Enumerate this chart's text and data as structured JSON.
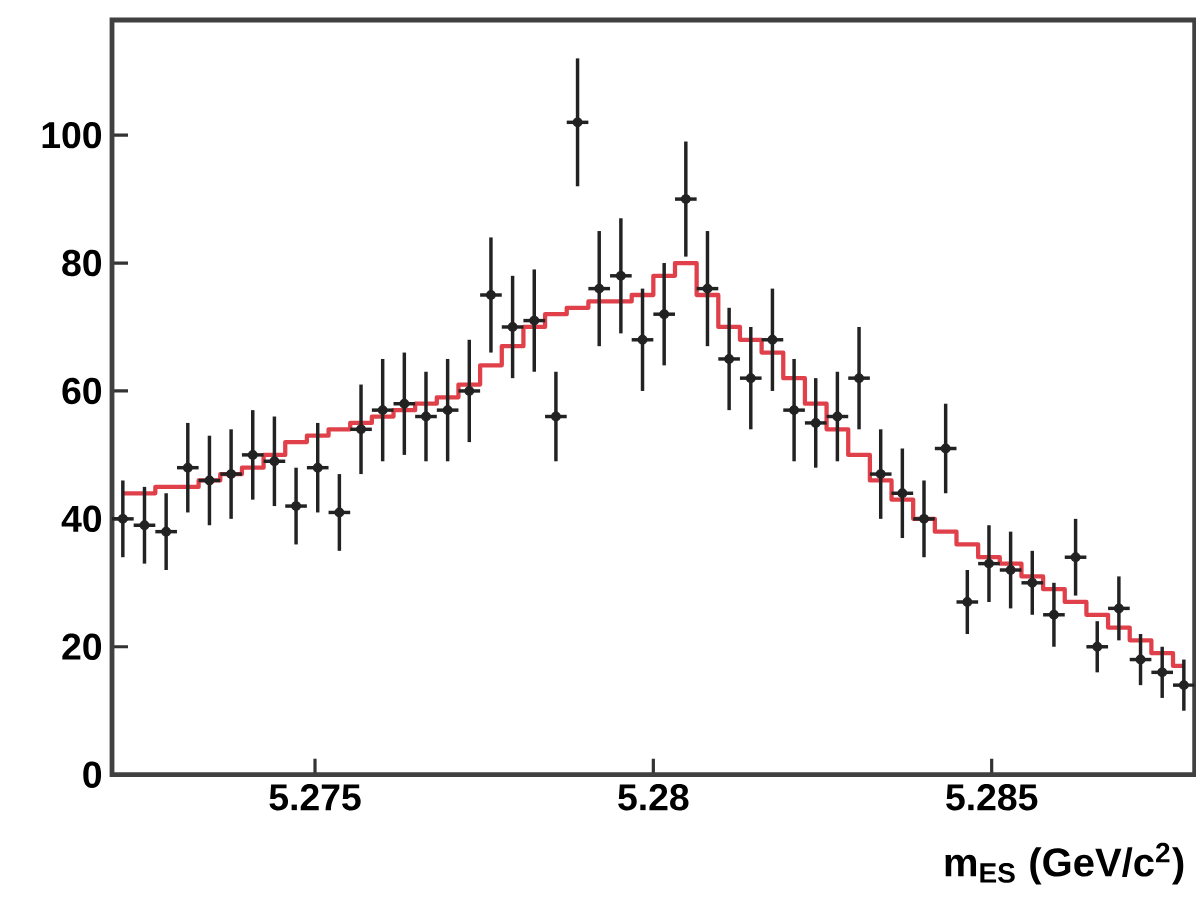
{
  "chart_data": {
    "type": "scatter",
    "xlabel": "m$_{ES}$ (GeV/c$^{2}$)",
    "x": [
      5.27216,
      5.27248,
      5.2728,
      5.27312,
      5.27344,
      5.27376,
      5.27408,
      5.2744,
      5.27472,
      5.27504,
      5.27536,
      5.27568,
      5.276,
      5.27632,
      5.27664,
      5.27696,
      5.27728,
      5.2776,
      5.27792,
      5.27824,
      5.27856,
      5.27888,
      5.2792,
      5.27952,
      5.27984,
      5.28016,
      5.28048,
      5.2808,
      5.28112,
      5.28144,
      5.28176,
      5.28208,
      5.2824,
      5.28272,
      5.28304,
      5.28336,
      5.28368,
      5.284,
      5.28432,
      5.28464,
      5.28496,
      5.28528,
      5.2856,
      5.28592,
      5.28624,
      5.28656,
      5.28688,
      5.2872,
      5.28752,
      5.28784
    ],
    "series": [
      {
        "color": "#222222",
        "marker": "circle",
        "values": [
          40,
          39,
          38,
          48,
          46,
          47,
          50,
          49,
          42,
          48,
          41,
          54,
          57,
          58,
          56,
          57,
          60,
          75,
          70,
          71,
          56,
          102,
          76,
          78,
          68,
          72,
          90,
          76,
          65,
          62,
          68,
          57,
          55,
          56,
          62,
          47,
          44,
          40,
          51,
          27,
          33,
          32,
          30,
          25,
          34,
          20,
          26,
          18,
          16,
          14
        ],
        "errors": [
          6,
          6,
          6,
          7,
          7,
          7,
          7,
          7,
          6,
          7,
          6,
          7,
          8,
          8,
          7,
          8,
          8,
          9,
          8,
          8,
          7,
          10,
          9,
          9,
          8,
          8,
          9,
          9,
          8,
          8,
          8,
          8,
          7,
          7,
          8,
          7,
          7,
          6,
          7,
          5,
          6,
          6,
          5,
          5,
          6,
          4,
          5,
          4,
          4,
          4
        ],
        "xerrors": [
          0.00016,
          0.00016,
          0.00016,
          0.00016,
          0.00016,
          0.00016,
          0.00016,
          0.00016,
          0.00016,
          0.00016,
          0.00016,
          0.00016,
          0.00016,
          0.00016,
          0.00016,
          0.00016,
          0.00016,
          0.00016,
          0.00016,
          0.00016,
          0.00016,
          0.00016,
          0.00016,
          0.00016,
          0.00016,
          0.00016,
          0.00016,
          0.00016,
          0.00016,
          0.00016,
          0.00016,
          0.00016,
          0.00016,
          0.00016,
          0.00016,
          0.00016,
          0.00016,
          0.00016,
          0.00016,
          0.00016,
          0.00016,
          0.00016,
          0.00016,
          0.00016,
          0.00016,
          0.00016,
          0.00016,
          0.00016,
          0.00016,
          0.00016
        ]
      },
      {
        "type": "step",
        "color": "#e0404a",
        "values": [
          44,
          44,
          45,
          45,
          46,
          47,
          48,
          50,
          52,
          53,
          54,
          55,
          56,
          57,
          58,
          59,
          61,
          64,
          67,
          70,
          72,
          73,
          74,
          74,
          75,
          78,
          80,
          75,
          70,
          68,
          66,
          62,
          58,
          54,
          50,
          46,
          43,
          40,
          38,
          36,
          34,
          33,
          31,
          29,
          27,
          25,
          23,
          21,
          19,
          17
        ]
      }
    ],
    "xlim": [
      5.272,
      5.288
    ],
    "ylim": [
      0,
      118
    ],
    "xticks": [
      5.275,
      5.28,
      5.285
    ],
    "yticks": [
      0,
      20,
      40,
      60,
      80,
      100
    ]
  }
}
